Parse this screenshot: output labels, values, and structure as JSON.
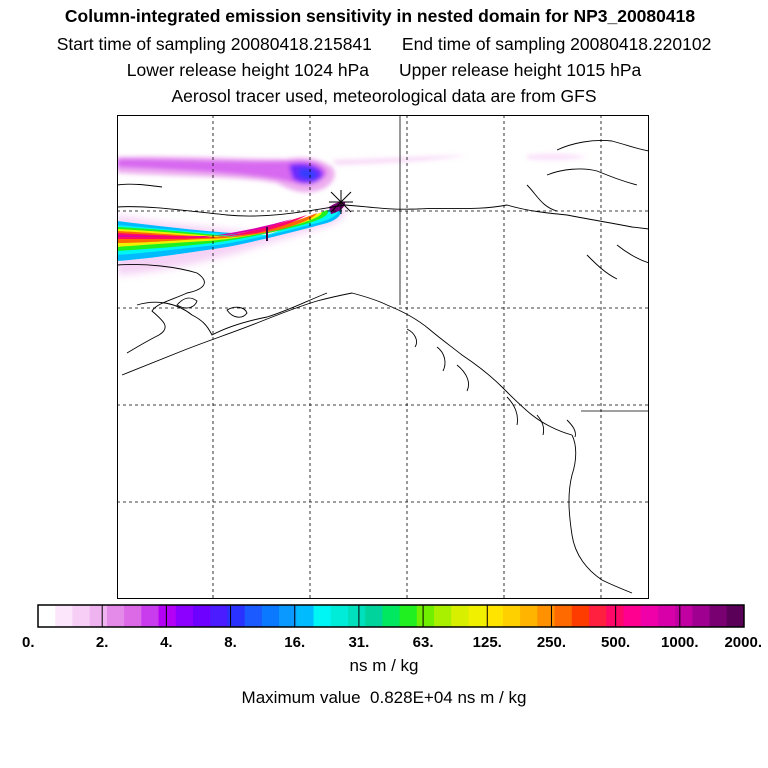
{
  "header": {
    "title": "Column-integrated emission sensitivity in nested domain for NP3_20080418",
    "start_time": "Start time of sampling 20080418.215841",
    "end_time": "End time of sampling 20080418.220102",
    "lower_release": "Lower release height 1024 hPa",
    "upper_release": "Upper release height 1015 hPa",
    "tracer_info": "Aerosol tracer used, meteorological data are from GFS"
  },
  "colorbar": {
    "labels": [
      "0.",
      "2.",
      "4.",
      "8.",
      "16.",
      "31.",
      "63.",
      "125.",
      "250.",
      "500.",
      "1000.",
      "2000."
    ],
    "colors": [
      "#ffffff",
      "#fbe6fb",
      "#f6cef6",
      "#efb4ef",
      "#e48ae8",
      "#dc6ae6",
      "#c93cee",
      "#b400f5",
      "#8c00ff",
      "#6e00ff",
      "#4a1cff",
      "#2a32ff",
      "#1a5aff",
      "#0a78ff",
      "#0a9aff",
      "#00bcff",
      "#00f5f5",
      "#00ecd8",
      "#00e0bc",
      "#00d49c",
      "#00e860",
      "#20f020",
      "#70f000",
      "#a8f000",
      "#d8f000",
      "#f0f000",
      "#ffe400",
      "#ffd000",
      "#ffb400",
      "#ff9000",
      "#ff6a00",
      "#ff3c00",
      "#ff2040",
      "#ff0868",
      "#ff0090",
      "#f000a8",
      "#d800a8",
      "#c000a0",
      "#a00090",
      "#780070",
      "#5a0058"
    ]
  },
  "units": "ns m / kg",
  "max_value": "Maximum value  0.828E+04 ns m / kg"
}
